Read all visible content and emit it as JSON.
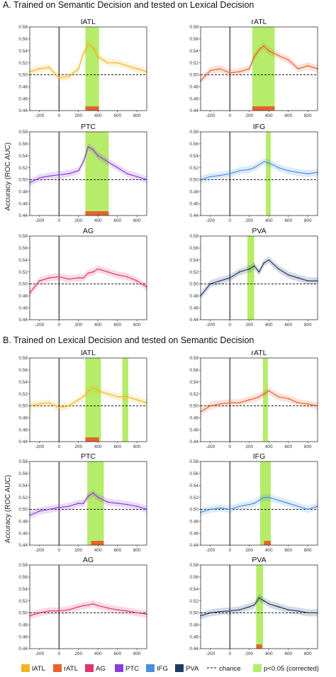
{
  "sections": [
    {
      "id": "A",
      "title": "A. Trained on Semantic Decision and tested on Lexical Decision"
    },
    {
      "id": "B",
      "title": "B. Trained on Lexical Decision and tested on Semantic Decision"
    }
  ],
  "ylabel": "Accuracy (ROC AUC)",
  "ylim": [
    0.44,
    0.58
  ],
  "xlim": [
    -300,
    900
  ],
  "yticks": [
    "0.58",
    "0.56",
    "0.54",
    "0.52",
    "0.50",
    "0.48",
    "0.46",
    "0.44"
  ],
  "xticks": [
    "-200",
    "0",
    "200",
    "400",
    "600",
    "800"
  ],
  "chance": 0.5,
  "colors": {
    "lATL": "#f2b51d",
    "rATL": "#e8612c",
    "AG": "#e0336e",
    "PTC": "#8a3fd6",
    "IFG": "#4a8fe0",
    "PVA": "#1e3a66",
    "sig_fill": "#b5ec6a",
    "sig_bar": "#e8612c"
  },
  "legend": [
    {
      "label": "lATL",
      "type": "swatch",
      "color": "#f2b51d"
    },
    {
      "label": "rATL",
      "type": "swatch",
      "color": "#e8612c"
    },
    {
      "label": "AG",
      "type": "swatch",
      "color": "#e0336e"
    },
    {
      "label": "PTC",
      "type": "swatch",
      "color": "#8a3fd6"
    },
    {
      "label": "IFG",
      "type": "swatch",
      "color": "#4a8fe0"
    },
    {
      "label": "PVA",
      "type": "swatch",
      "color": "#1e3a66"
    },
    {
      "label": "chance",
      "type": "dashed",
      "color": "#000000"
    },
    {
      "label": "p<0.05 (corrected)",
      "type": "swatch",
      "color": "#b5ec6a"
    }
  ],
  "chart_data": [
    {
      "type": "line",
      "section": "A",
      "title": "lATL",
      "color": "#f2b51d",
      "x": [
        -300,
        -200,
        -100,
        0,
        100,
        200,
        250,
        300,
        350,
        400,
        500,
        600,
        700,
        800,
        900
      ],
      "y": [
        0.505,
        0.51,
        0.512,
        0.495,
        0.497,
        0.51,
        0.535,
        0.552,
        0.545,
        0.53,
        0.52,
        0.52,
        0.515,
        0.51,
        0.505
      ],
      "sig_windows": [
        [
          270,
          410
        ]
      ],
      "sig_bars": [
        [
          270,
          410
        ]
      ]
    },
    {
      "type": "line",
      "section": "A",
      "title": "rATL",
      "color": "#e8612c",
      "x": [
        -300,
        -200,
        -100,
        0,
        100,
        200,
        250,
        300,
        350,
        400,
        500,
        600,
        700,
        800,
        900
      ],
      "y": [
        0.49,
        0.507,
        0.51,
        0.503,
        0.505,
        0.51,
        0.53,
        0.542,
        0.548,
        0.54,
        0.532,
        0.525,
        0.51,
        0.515,
        0.51
      ],
      "sig_windows": [
        [
          230,
          460
        ]
      ],
      "sig_bars": [
        [
          230,
          460
        ]
      ]
    },
    {
      "type": "line",
      "section": "A",
      "title": "PTC",
      "color": "#8a3fd6",
      "x": [
        -300,
        -200,
        -100,
        0,
        100,
        200,
        250,
        300,
        350,
        400,
        500,
        600,
        700,
        800,
        900
      ],
      "y": [
        0.495,
        0.503,
        0.506,
        0.508,
        0.51,
        0.515,
        0.53,
        0.555,
        0.55,
        0.54,
        0.53,
        0.52,
        0.51,
        0.505,
        0.5
      ],
      "sig_windows": [
        [
          270,
          510
        ]
      ],
      "sig_bars": [
        [
          270,
          510
        ]
      ]
    },
    {
      "type": "line",
      "section": "A",
      "title": "IFG",
      "color": "#4a8fe0",
      "x": [
        -300,
        -200,
        -100,
        0,
        100,
        200,
        250,
        300,
        350,
        400,
        500,
        600,
        700,
        800,
        900
      ],
      "y": [
        0.5,
        0.505,
        0.507,
        0.51,
        0.515,
        0.517,
        0.52,
        0.525,
        0.53,
        0.528,
        0.52,
        0.515,
        0.512,
        0.51,
        0.512
      ],
      "sig_windows": [
        [
          370,
          420
        ]
      ],
      "sig_bars": []
    },
    {
      "type": "line",
      "section": "A",
      "title": "AG",
      "color": "#e0336e",
      "x": [
        -300,
        -200,
        -100,
        0,
        100,
        200,
        250,
        300,
        350,
        400,
        500,
        600,
        700,
        800,
        900
      ],
      "y": [
        0.485,
        0.505,
        0.51,
        0.512,
        0.508,
        0.51,
        0.51,
        0.518,
        0.52,
        0.525,
        0.52,
        0.515,
        0.512,
        0.505,
        0.495
      ],
      "sig_windows": [],
      "sig_bars": []
    },
    {
      "type": "line",
      "section": "A",
      "title": "PVA",
      "color": "#1e3a66",
      "x": [
        -300,
        -200,
        -100,
        0,
        100,
        200,
        250,
        300,
        350,
        400,
        500,
        600,
        700,
        800,
        900
      ],
      "y": [
        0.48,
        0.5,
        0.505,
        0.51,
        0.52,
        0.525,
        0.53,
        0.52,
        0.535,
        0.54,
        0.525,
        0.515,
        0.51,
        0.505,
        0.505
      ],
      "sig_windows": [
        [
          180,
          250
        ]
      ],
      "sig_bars": []
    },
    {
      "type": "line",
      "section": "B",
      "title": "lATL",
      "color": "#f2b51d",
      "x": [
        -300,
        -200,
        -100,
        0,
        100,
        200,
        250,
        300,
        350,
        400,
        500,
        600,
        700,
        800,
        900
      ],
      "y": [
        0.5,
        0.503,
        0.505,
        0.497,
        0.5,
        0.51,
        0.515,
        0.525,
        0.53,
        0.525,
        0.52,
        0.515,
        0.515,
        0.51,
        0.505
      ],
      "sig_windows": [
        [
          270,
          430
        ],
        [
          650,
          710
        ]
      ],
      "sig_bars": [
        [
          270,
          410
        ]
      ]
    },
    {
      "type": "line",
      "section": "B",
      "title": "rATL",
      "color": "#e8612c",
      "x": [
        -300,
        -200,
        -100,
        0,
        100,
        200,
        250,
        300,
        350,
        400,
        500,
        600,
        700,
        800,
        900
      ],
      "y": [
        0.49,
        0.5,
        0.503,
        0.505,
        0.505,
        0.51,
        0.512,
        0.515,
        0.52,
        0.525,
        0.515,
        0.512,
        0.505,
        0.503,
        0.5
      ],
      "sig_windows": [
        [
          340,
          390
        ]
      ],
      "sig_bars": []
    },
    {
      "type": "line",
      "section": "B",
      "title": "PTC",
      "color": "#8a3fd6",
      "x": [
        -300,
        -200,
        -100,
        0,
        100,
        200,
        250,
        300,
        350,
        400,
        500,
        600,
        700,
        800,
        900
      ],
      "y": [
        0.49,
        0.497,
        0.5,
        0.503,
        0.505,
        0.51,
        0.51,
        0.522,
        0.527,
        0.52,
        0.512,
        0.51,
        0.508,
        0.505,
        0.5
      ],
      "sig_windows": [
        [
          290,
          460
        ]
      ],
      "sig_bars": [
        [
          330,
          460
        ]
      ]
    },
    {
      "type": "line",
      "section": "B",
      "title": "IFG",
      "color": "#4a8fe0",
      "x": [
        -300,
        -200,
        -100,
        0,
        100,
        200,
        250,
        300,
        350,
        400,
        500,
        600,
        700,
        800,
        900
      ],
      "y": [
        0.495,
        0.5,
        0.502,
        0.5,
        0.505,
        0.508,
        0.51,
        0.515,
        0.52,
        0.52,
        0.515,
        0.51,
        0.505,
        0.5,
        0.505
      ],
      "sig_windows": [
        [
          310,
          420
        ]
      ],
      "sig_bars": [
        [
          350,
          420
        ]
      ]
    },
    {
      "type": "line",
      "section": "B",
      "title": "AG",
      "color": "#e0336e",
      "x": [
        -300,
        -200,
        -100,
        0,
        100,
        200,
        250,
        300,
        350,
        400,
        500,
        600,
        700,
        800,
        900
      ],
      "y": [
        0.495,
        0.5,
        0.503,
        0.503,
        0.505,
        0.51,
        0.512,
        0.513,
        0.515,
        0.512,
        0.508,
        0.505,
        0.503,
        0.5,
        0.498
      ],
      "sig_windows": [],
      "sig_bars": []
    },
    {
      "type": "line",
      "section": "B",
      "title": "PVA",
      "color": "#1e3a66",
      "x": [
        -300,
        -200,
        -100,
        0,
        100,
        200,
        250,
        300,
        350,
        400,
        500,
        600,
        700,
        800,
        900
      ],
      "y": [
        0.495,
        0.5,
        0.502,
        0.503,
        0.505,
        0.51,
        0.513,
        0.525,
        0.52,
        0.515,
        0.51,
        0.505,
        0.503,
        0.5,
        0.5
      ],
      "sig_windows": [
        [
          270,
          340
        ]
      ],
      "sig_bars": [
        [
          270,
          330
        ]
      ]
    }
  ]
}
